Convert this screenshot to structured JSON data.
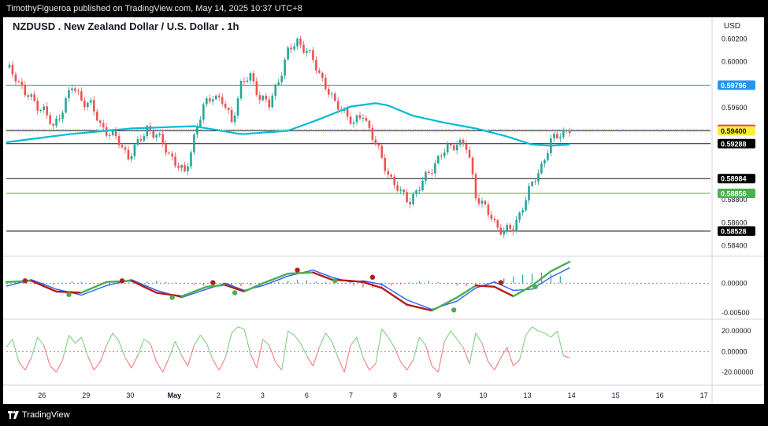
{
  "header": {
    "publisher_line": "TimothyFigueroa published on TradingView.com, May 14, 2025 10:37 UTC+8"
  },
  "footer": {
    "brand": "TradingView"
  },
  "chart_data": [
    {
      "type": "candlestick",
      "title": "NZDUSD . New Zealand Dollar / U.S. Dollar . 1h",
      "currency": "USD",
      "xlabel": "",
      "ylabel": "",
      "ylim": [
        0.5835,
        0.6025
      ],
      "x_ticks": [
        "26",
        "29",
        "30",
        "May",
        "2",
        "3",
        "6",
        "7",
        "8",
        "9",
        "10",
        "13",
        "14",
        "15",
        "16",
        "17"
      ],
      "y_ticks": [
        "0.60200",
        "0.60000",
        "0.59600",
        "0.59400",
        "0.58800",
        "0.58600",
        "0.58400"
      ],
      "grid": false,
      "close_path": [
        [
          0,
          0.5995
        ],
        [
          3,
          0.5988
        ],
        [
          6,
          0.5972
        ],
        [
          9,
          0.5965
        ],
        [
          12,
          0.5958
        ],
        [
          15,
          0.5942
        ],
        [
          18,
          0.596
        ],
        [
          21,
          0.5978
        ],
        [
          24,
          0.5968
        ],
        [
          27,
          0.5962
        ],
        [
          30,
          0.5945
        ],
        [
          33,
          0.5938
        ],
        [
          36,
          0.593
        ],
        [
          39,
          0.5918
        ],
        [
          42,
          0.5928
        ],
        [
          45,
          0.5943
        ],
        [
          48,
          0.5935
        ],
        [
          51,
          0.5925
        ],
        [
          54,
          0.5912
        ],
        [
          57,
          0.5902
        ],
        [
          60,
          0.5935
        ],
        [
          63,
          0.596
        ],
        [
          66,
          0.5972
        ],
        [
          69,
          0.5965
        ],
        [
          72,
          0.5948
        ],
        [
          75,
          0.598
        ],
        [
          78,
          0.5987
        ],
        [
          81,
          0.597
        ],
        [
          84,
          0.5962
        ],
        [
          87,
          0.5985
        ],
        [
          90,
          0.6008
        ],
        [
          93,
          0.6018
        ],
        [
          96,
          0.601
        ],
        [
          99,
          0.5995
        ],
        [
          102,
          0.598
        ],
        [
          105,
          0.5962
        ],
        [
          108,
          0.5958
        ],
        [
          111,
          0.5945
        ],
        [
          114,
          0.5955
        ],
        [
          117,
          0.5935
        ],
        [
          120,
          0.5915
        ],
        [
          123,
          0.5898
        ],
        [
          126,
          0.5885
        ],
        [
          129,
          0.588
        ],
        [
          132,
          0.589
        ],
        [
          135,
          0.5905
        ],
        [
          138,
          0.5915
        ],
        [
          141,
          0.5925
        ],
        [
          144,
          0.593
        ],
        [
          147,
          0.5925
        ],
        [
          148,
          0.5915
        ],
        [
          150,
          0.5885
        ],
        [
          153,
          0.5872
        ],
        [
          156,
          0.586
        ],
        [
          159,
          0.5852
        ],
        [
          162,
          0.5855
        ],
        [
          165,
          0.5875
        ],
        [
          168,
          0.5893
        ],
        [
          171,
          0.591
        ],
        [
          174,
          0.593
        ],
        [
          177,
          0.5938
        ],
        [
          180,
          0.5941
        ]
      ],
      "series": [
        {
          "name": "",
          "color": "#00bcd4",
          "values": [
            [
              0,
              0.593
            ],
            [
              20,
              0.5937
            ],
            [
              40,
              0.5942
            ],
            [
              60,
              0.5944
            ],
            [
              75,
              0.5937
            ],
            [
              90,
              0.594
            ],
            [
              100,
              0.595
            ],
            [
              110,
              0.5961
            ],
            [
              118,
              0.5964
            ],
            [
              122,
              0.5962
            ],
            [
              130,
              0.5953
            ],
            [
              140,
              0.5947
            ],
            [
              150,
              0.5942
            ],
            [
              160,
              0.5935
            ],
            [
              168,
              0.5928
            ],
            [
              174,
              0.5927
            ],
            [
              180,
              0.5928
            ]
          ]
        }
      ],
      "price_lines": [
        {
          "price": "0.59796",
          "color": "#2196f3",
          "label_bg": "#2196f3",
          "label_fg": "#ffffff"
        },
        {
          "price": "0.59412",
          "color": "#ff9800",
          "label_bg": "#f23645",
          "label_fg": "#ffffff",
          "dotted": true
        },
        {
          "price": "0.59400",
          "color": "#131722",
          "label_bg": "#ffeb3b",
          "label_fg": "#131722"
        },
        {
          "price": "0.59288",
          "color": "#131722",
          "label_bg": "#000000",
          "label_fg": "#ffffff"
        },
        {
          "price": "0.58984",
          "color": "#131722",
          "label_bg": "#000000",
          "label_fg": "#ffffff"
        },
        {
          "price": "0.58856",
          "color": "#4caf50",
          "label_bg": "#4caf50",
          "label_fg": "#ffffff"
        },
        {
          "price": "0.58528",
          "color": "#131722",
          "label_bg": "#000000",
          "label_fg": "#ffffff"
        }
      ],
      "colors": {
        "up": "#26a69a",
        "down": "#ef5350"
      }
    },
    {
      "type": "line",
      "ylim": [
        -0.0055,
        0.004
      ],
      "y_ticks": [
        "0.00000",
        "-0.00500"
      ],
      "series": [
        {
          "name": "",
          "color": "#2962ff",
          "values": [
            [
              0,
              -0.0005
            ],
            [
              8,
              0.0006
            ],
            [
              16,
              -0.001
            ],
            [
              24,
              -0.002
            ],
            [
              32,
              -0.0004
            ],
            [
              40,
              0.0006
            ],
            [
              48,
              -0.0012
            ],
            [
              56,
              -0.0024
            ],
            [
              64,
              -0.001
            ],
            [
              70,
              0.0
            ],
            [
              76,
              -0.0012
            ],
            [
              82,
              -0.0004
            ],
            [
              90,
              0.0012
            ],
            [
              98,
              0.0022
            ],
            [
              104,
              0.001
            ],
            [
              110,
              0.0002
            ],
            [
              114,
              0.0004
            ],
            [
              120,
              -0.0002
            ],
            [
              128,
              -0.0028
            ],
            [
              136,
              -0.0044
            ],
            [
              144,
              -0.003
            ],
            [
              150,
              -0.0008
            ],
            [
              156,
              0.0002
            ],
            [
              162,
              -0.0012
            ],
            [
              168,
              -0.001
            ],
            [
              174,
              0.001
            ],
            [
              180,
              0.0026
            ]
          ]
        },
        {
          "name": "",
          "color": "#b71c1c",
          "values": [
            [
              0,
              0.0002
            ],
            [
              8,
              0.0004
            ],
            [
              16,
              -0.0014
            ],
            [
              24,
              -0.0016
            ],
            [
              32,
              0.0002
            ],
            [
              40,
              0.0004
            ],
            [
              48,
              -0.0016
            ],
            [
              56,
              -0.0022
            ],
            [
              64,
              -0.0006
            ],
            [
              70,
              -0.0003
            ],
            [
              76,
              -0.0014
            ],
            [
              82,
              0.0
            ],
            [
              90,
              0.0016
            ],
            [
              98,
              0.0018
            ],
            [
              104,
              0.0006
            ],
            [
              110,
              0.0004
            ],
            [
              114,
              0.0002
            ],
            [
              120,
              -0.0008
            ],
            [
              128,
              -0.0036
            ],
            [
              136,
              -0.0046
            ],
            [
              144,
              -0.0024
            ],
            [
              150,
              -0.0004
            ],
            [
              156,
              -0.0006
            ],
            [
              162,
              -0.0022
            ],
            [
              168,
              -0.0004
            ],
            [
              174,
              0.002
            ],
            [
              180,
              0.0036
            ]
          ]
        }
      ],
      "histogram": [
        0.0001,
        0.0002,
        0.0001,
        -0.0002,
        -0.0003,
        -0.0002,
        0.0001,
        0.0003,
        0.0002,
        -0.0001,
        -0.0003,
        -0.0004,
        -0.0002,
        0.0001,
        0.0002,
        0.0003,
        0.0004,
        0.0002,
        0.0001,
        -0.0001,
        -0.0003,
        -0.0004,
        -0.0002,
        -0.0001,
        -0.0003,
        -0.0005,
        -0.0004,
        -0.0002,
        0.0001,
        0.0002,
        0.0004,
        0.0006,
        0.0005,
        0.0003,
        0.0002,
        0.0001,
        -0.0001,
        -0.0004,
        -0.0007,
        -0.0008,
        -0.0006,
        -0.0004,
        -0.0002,
        0.0001,
        0.0003,
        0.0004,
        0.0002,
        -0.0002,
        -0.0004,
        -0.0005,
        -0.0003,
        0.0,
        0.0004,
        0.0008,
        0.0011,
        0.0014,
        0.0016,
        0.0018,
        0.0015,
        0.0012
      ],
      "crosses": [
        {
          "x": 6,
          "y": 0.0004,
          "color": "#b71c1c"
        },
        {
          "x": 20,
          "y": -0.0019,
          "color": "#4caf50"
        },
        {
          "x": 37,
          "y": 0.0004,
          "color": "#b71c1c"
        },
        {
          "x": 53,
          "y": -0.0024,
          "color": "#4caf50"
        },
        {
          "x": 66,
          "y": 0.0001,
          "color": "#b71c1c"
        },
        {
          "x": 73,
          "y": -0.0016,
          "color": "#4caf50"
        },
        {
          "x": 93,
          "y": 0.0022,
          "color": "#b71c1c"
        },
        {
          "x": 105,
          "y": 0.0004,
          "color": "#4caf50"
        },
        {
          "x": 117,
          "y": 0.001,
          "color": "#b71c1c"
        },
        {
          "x": 143,
          "y": -0.0045,
          "color": "#4caf50"
        },
        {
          "x": 158,
          "y": 0.0001,
          "color": "#b71c1c"
        },
        {
          "x": 169,
          "y": -0.0006,
          "color": "#4caf50"
        }
      ]
    },
    {
      "type": "line",
      "ylim": [
        -28,
        30
      ],
      "y_ticks": [
        "20.00000",
        "0.00000",
        "-20.00000"
      ],
      "series": [
        {
          "name": "",
          "values": [
            [
              0,
              4
            ],
            [
              2,
              12
            ],
            [
              4,
              -10
            ],
            [
              6,
              -18
            ],
            [
              8,
              -6
            ],
            [
              10,
              14
            ],
            [
              12,
              6
            ],
            [
              14,
              -14
            ],
            [
              16,
              -20
            ],
            [
              18,
              -8
            ],
            [
              20,
              16
            ],
            [
              22,
              8
            ],
            [
              24,
              14
            ],
            [
              26,
              -4
            ],
            [
              28,
              -18
            ],
            [
              30,
              -10
            ],
            [
              32,
              6
            ],
            [
              34,
              18
            ],
            [
              36,
              10
            ],
            [
              38,
              -6
            ],
            [
              40,
              -16
            ],
            [
              42,
              -4
            ],
            [
              44,
              12
            ],
            [
              46,
              8
            ],
            [
              48,
              -10
            ],
            [
              50,
              -20
            ],
            [
              52,
              -6
            ],
            [
              54,
              10
            ],
            [
              56,
              -4
            ],
            [
              58,
              -14
            ],
            [
              60,
              6
            ],
            [
              62,
              16
            ],
            [
              64,
              8
            ],
            [
              66,
              -8
            ],
            [
              68,
              -18
            ],
            [
              70,
              -6
            ],
            [
              72,
              18
            ],
            [
              74,
              24
            ],
            [
              76,
              22
            ],
            [
              78,
              -2
            ],
            [
              80,
              -16
            ],
            [
              82,
              12
            ],
            [
              84,
              6
            ],
            [
              86,
              -10
            ],
            [
              88,
              -18
            ],
            [
              90,
              20
            ],
            [
              92,
              16
            ],
            [
              94,
              8
            ],
            [
              96,
              -4
            ],
            [
              98,
              -14
            ],
            [
              100,
              4
            ],
            [
              102,
              18
            ],
            [
              104,
              10
            ],
            [
              106,
              -6
            ],
            [
              108,
              -20
            ],
            [
              110,
              6
            ],
            [
              112,
              14
            ],
            [
              114,
              -6
            ],
            [
              116,
              -18
            ],
            [
              118,
              -12
            ],
            [
              120,
              22
            ],
            [
              122,
              14
            ],
            [
              124,
              4
            ],
            [
              126,
              -10
            ],
            [
              128,
              -18
            ],
            [
              130,
              -8
            ],
            [
              132,
              14
            ],
            [
              134,
              6
            ],
            [
              136,
              -14
            ],
            [
              138,
              -20
            ],
            [
              140,
              10
            ],
            [
              142,
              20
            ],
            [
              144,
              12
            ],
            [
              146,
              4
            ],
            [
              148,
              -12
            ],
            [
              150,
              18
            ],
            [
              152,
              8
            ],
            [
              154,
              -10
            ],
            [
              156,
              -18
            ],
            [
              158,
              -6
            ],
            [
              160,
              4
            ],
            [
              162,
              -14
            ],
            [
              164,
              -8
            ],
            [
              166,
              16
            ],
            [
              168,
              24
            ],
            [
              170,
              20
            ],
            [
              172,
              18
            ],
            [
              174,
              14
            ],
            [
              176,
              20
            ],
            [
              178,
              -4
            ],
            [
              180,
              -6
            ]
          ]
        }
      ],
      "colors": {
        "positive": "#4caf50",
        "negative": "#f23645",
        "positive_light": "#7dd17f",
        "negative_light": "#f77c80"
      }
    }
  ]
}
